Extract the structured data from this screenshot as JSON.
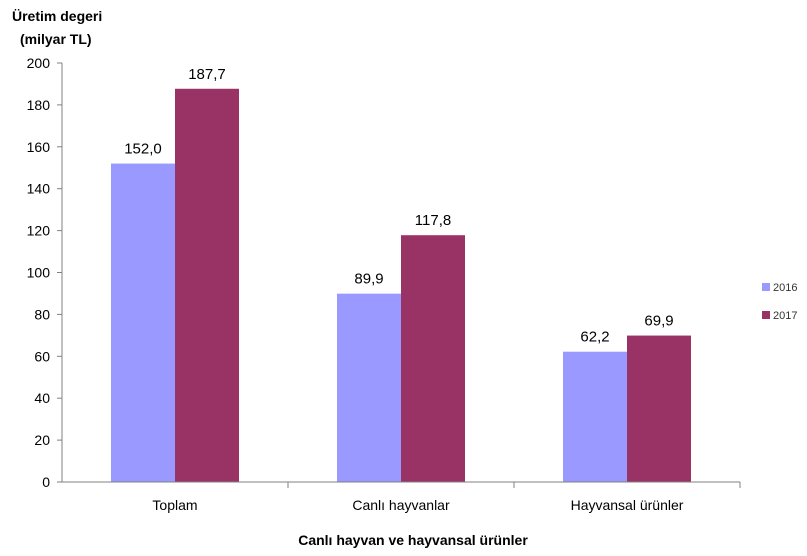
{
  "chart_data": {
    "type": "bar",
    "ylabel_line1": "Üretim degeri",
    "ylabel_line2": "(milyar TL)",
    "xlabel": "Canlı hayvan ve hayvansal ürünler",
    "ylim": [
      0,
      200
    ],
    "yticks": [
      0,
      20,
      40,
      60,
      80,
      100,
      120,
      140,
      160,
      180,
      200
    ],
    "categories": [
      "Toplam",
      "Canlı hayvanlar",
      "Hayvansal ürünler"
    ],
    "series": [
      {
        "name": "2016",
        "color": "#9999ff",
        "values": [
          152.0,
          89.9,
          62.2
        ],
        "labels": [
          "152,0",
          "89,9",
          "62,2"
        ]
      },
      {
        "name": "2017",
        "color": "#993366",
        "values": [
          187.7,
          117.8,
          69.9
        ],
        "labels": [
          "187,7",
          "117,8",
          "69,9"
        ]
      }
    ],
    "grid": false,
    "legend_position": "right"
  }
}
